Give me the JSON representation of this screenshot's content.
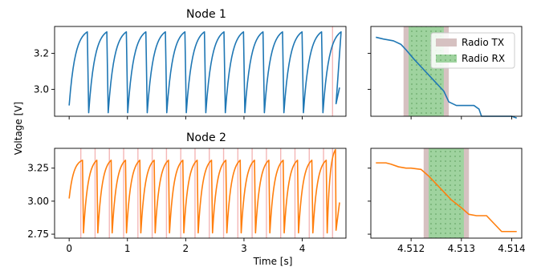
{
  "figure": {
    "shared_ylabel": "Voltage [V]",
    "shared_xlabel": "Time [s]"
  },
  "colors": {
    "node1": "#1f77b4",
    "node2": "#ff7f0e",
    "radio_tx": "#d6c1c1",
    "radio_rx": "#9fd39f",
    "radio_rx_dots": "#6aa86a",
    "burst_line": "#f4b7b7"
  },
  "legend": {
    "placement": "upper-right of top-right panel",
    "entries": [
      "Radio TX",
      "Radio RX"
    ]
  },
  "chart_data": [
    {
      "type": "line",
      "title": "Node 1",
      "xlim": [
        -0.25,
        4.75
      ],
      "ylim": [
        2.85,
        3.35
      ],
      "xticks": [
        0,
        1,
        2,
        3,
        4
      ],
      "xtick_labels_shown": false,
      "yticks": [
        3.0,
        3.2
      ],
      "ytick_labels": [
        "3.0",
        "3.2"
      ],
      "series": [
        {
          "color": "node1",
          "cycles": {
            "start": 0.0,
            "period": 0.335,
            "count": 14,
            "v_low": 2.87,
            "v_high": 3.32,
            "first_low": 2.91
          },
          "end": {
            "x": 4.6,
            "v_drop": 2.92,
            "v_final": 3.01
          }
        }
      ],
      "burst_markers_x": [
        4.52
      ]
    },
    {
      "type": "line",
      "title": "",
      "xlim": [
        4.5112,
        4.5142
      ],
      "ylim": [
        2.85,
        3.35
      ],
      "xticks": [
        4.512,
        4.513,
        4.514
      ],
      "xtick_labels_shown": false,
      "series": [
        {
          "color": "node1",
          "x": [
            4.5113,
            4.51145,
            4.51165,
            4.5118,
            4.5119,
            4.51205,
            4.51225,
            4.51245,
            4.51265,
            4.51275,
            4.5129,
            4.5131,
            4.51325,
            4.51335,
            4.5134,
            4.5136,
            4.5138,
            4.514,
            4.5141
          ],
          "y": [
            3.29,
            3.28,
            3.27,
            3.25,
            3.22,
            3.17,
            3.11,
            3.05,
            2.99,
            2.93,
            2.91,
            2.91,
            2.91,
            2.89,
            2.85,
            2.85,
            2.85,
            2.85,
            2.84
          ]
        }
      ],
      "radio_tx": [
        4.51185,
        4.51275
      ],
      "radio_rx": [
        4.51195,
        4.51265
      ]
    },
    {
      "type": "line",
      "title": "Node 2",
      "xlim": [
        -0.25,
        4.75
      ],
      "ylim": [
        2.72,
        3.4
      ],
      "xticks": [
        0,
        1,
        2,
        3,
        4
      ],
      "xtick_labels": [
        "0",
        "1",
        "2",
        "3",
        "4"
      ],
      "yticks": [
        2.75,
        3.0,
        3.25
      ],
      "ytick_labels": [
        "2.75",
        "3.00",
        "3.25"
      ],
      "series": [
        {
          "color": "node2",
          "cycles": {
            "start": 0.0,
            "period": 0.246,
            "count": 18,
            "v_low": 2.76,
            "v_high": 3.31,
            "first_low": 3.02
          },
          "end": {
            "x": 4.6,
            "v_drop": 2.78,
            "v_final": 2.99
          }
        }
      ],
      "burst_markers_x": [
        0.2,
        0.445,
        0.69,
        0.935,
        1.18,
        1.425,
        1.67,
        1.915,
        2.16,
        2.405,
        2.65,
        2.895,
        3.14,
        3.385,
        3.63,
        3.875,
        4.12,
        4.365,
        4.52
      ]
    },
    {
      "type": "line",
      "title": "",
      "xlim": [
        4.5112,
        4.5142
      ],
      "ylim": [
        2.72,
        3.4
      ],
      "xticks": [
        4.512,
        4.513,
        4.514
      ],
      "xtick_labels": [
        "4.512",
        "4.513",
        "4.514"
      ],
      "series": [
        {
          "color": "node2",
          "x": [
            4.5113,
            4.5114,
            4.5115,
            4.5116,
            4.51175,
            4.5119,
            4.512,
            4.5122,
            4.51235,
            4.5125,
            4.51265,
            4.5128,
            4.513,
            4.51315,
            4.5133,
            4.5135,
            4.51365,
            4.5138,
            4.514,
            4.5141
          ],
          "y": [
            3.29,
            3.29,
            3.29,
            3.28,
            3.26,
            3.25,
            3.25,
            3.24,
            3.19,
            3.13,
            3.07,
            3.01,
            2.95,
            2.9,
            2.89,
            2.89,
            2.83,
            2.77,
            2.77,
            2.77
          ]
        }
      ],
      "radio_tx": [
        4.51225,
        4.51315
      ],
      "radio_rx": [
        4.51235,
        4.51305
      ]
    }
  ]
}
